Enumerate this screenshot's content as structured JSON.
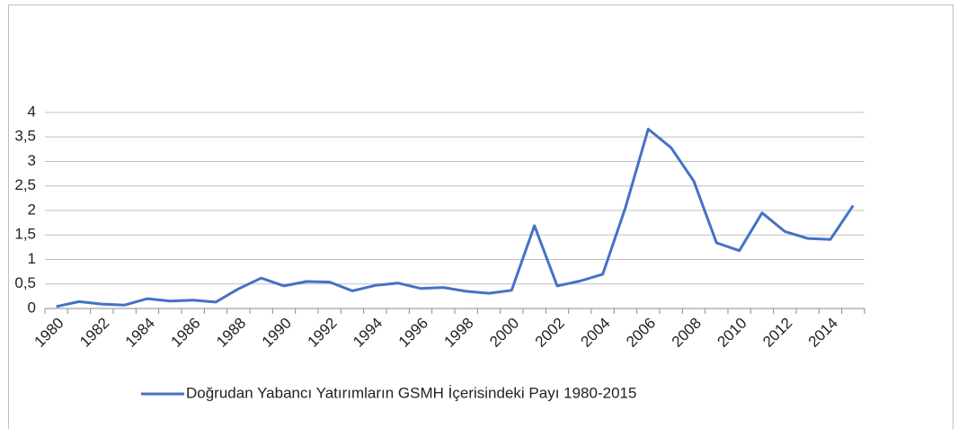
{
  "chart_data": {
    "type": "line",
    "categories": [
      "1980",
      null,
      "1982",
      null,
      "1984",
      null,
      "1986",
      null,
      "1988",
      null,
      "1990",
      null,
      "1992",
      null,
      "1994",
      null,
      "1996",
      null,
      "1998",
      null,
      "2000",
      null,
      "2002",
      null,
      "2004",
      null,
      "2006",
      null,
      "2008",
      null,
      "2010",
      null,
      "2012",
      null,
      "2014",
      null
    ],
    "series": [
      {
        "name": "Doğrudan Yabancı Yatırımların GSMH İçerisindeki Payı 1980-2015",
        "color": "#4472c4",
        "values": [
          0.04,
          0.14,
          0.09,
          0.07,
          0.2,
          0.15,
          0.17,
          0.13,
          0.4,
          0.62,
          0.46,
          0.55,
          0.54,
          0.36,
          0.47,
          0.52,
          0.41,
          0.43,
          0.35,
          0.31,
          0.37,
          1.69,
          0.46,
          0.56,
          0.7,
          2.06,
          3.66,
          3.28,
          2.6,
          1.34,
          1.18,
          1.95,
          1.57,
          1.43,
          1.41,
          2.1
        ]
      }
    ],
    "ylim": [
      0,
      4
    ],
    "yticks": [
      0,
      {
        "value": 0.5,
        "label": "0,5"
      },
      1,
      {
        "value": 1.5,
        "label": "1,5"
      },
      2,
      {
        "value": 2.5,
        "label": "2,5"
      },
      3,
      {
        "value": 3.5,
        "label": "3,5"
      },
      4
    ],
    "grid": true,
    "legend": "bottom"
  }
}
